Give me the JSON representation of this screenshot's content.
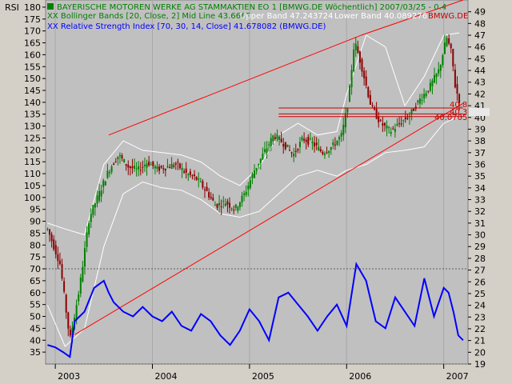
{
  "panel_label": "RSI",
  "legend": {
    "price": "BAYERISCHE MOTOREN WERKE AG STAMMAKTIEN EO 1 [BMWG.DE  Wöchentlich] 2007/03/25 - 0.4",
    "bollinger_main": "XX Bollinger Bands [20, Close, 2] Mid Line 43.6665",
    "bollinger_upper": "Upper Band 47.243724",
    "bollinger_lower": "Lower Band 40.089276",
    "bollinger_overlay": "BMWG.DE",
    "rsi": "XX Relative Strength Index [70, 30, 14, Close] 41.678082 (BMWG.DE)"
  },
  "price_markers": [
    "40.8",
    "40.3",
    "40.0705"
  ],
  "colors": {
    "background": "#c0c0c0",
    "price_up": "#008000",
    "price_down": "#8b0000",
    "bollinger": "#ffffff",
    "trendline": "#ff0000",
    "rsi": "#0000ff",
    "level_line": "#cc0000",
    "legend_main": "#008000",
    "legend_rsi": "#0000ff"
  },
  "chart_data": {
    "type": "line",
    "x_axis": {
      "tick_labels": [
        "2003",
        "2004",
        "2005",
        "2006",
        "2007"
      ],
      "range": [
        2002.9,
        2007.25
      ]
    },
    "left_axis": {
      "range": [
        30,
        183
      ],
      "tick_labels": [
        "35",
        "40",
        "45",
        "50",
        "55",
        "60",
        "65",
        "70",
        "75",
        "80",
        "85",
        "90",
        "95",
        "100",
        "105",
        "110",
        "115",
        "120",
        "125",
        "130",
        "135",
        "140",
        "145",
        "150",
        "155",
        "160",
        "165",
        "170",
        "175",
        "180"
      ]
    },
    "right_axis": {
      "range": [
        19,
        50
      ],
      "tick_labels": [
        "19",
        "20",
        "21",
        "22",
        "23",
        "24",
        "25",
        "26",
        "27",
        "28",
        "29",
        "30",
        "31",
        "32",
        "33",
        "34",
        "35",
        "36",
        "37",
        "38",
        "39",
        "40",
        "41",
        "42",
        "43",
        "44",
        "45",
        "46",
        "47",
        "48",
        "49"
      ]
    },
    "price_series": {
      "name": "BMWG.DE",
      "x": [
        2002.92,
        2003.05,
        2003.15,
        2003.25,
        2003.35,
        2003.45,
        2003.55,
        2003.65,
        2003.75,
        2003.85,
        2003.95,
        2004.05,
        2004.15,
        2004.25,
        2004.35,
        2004.45,
        2004.55,
        2004.65,
        2004.75,
        2004.85,
        2004.95,
        2005.05,
        2005.15,
        2005.25,
        2005.35,
        2005.45,
        2005.55,
        2005.65,
        2005.75,
        2005.85,
        2005.95,
        2006.02,
        2006.08,
        2006.15,
        2006.25,
        2006.35,
        2006.45,
        2006.55,
        2006.65,
        2006.75,
        2006.85,
        2006.95,
        2007.03,
        2007.08,
        2007.12,
        2007.16
      ],
      "close": [
        30.5,
        27.5,
        21.0,
        25.5,
        31.5,
        33.5,
        35.5,
        36.8,
        35.8,
        35.5,
        36.2,
        35.6,
        35.8,
        36.0,
        35.2,
        34.8,
        33.8,
        32.5,
        32.8,
        32.2,
        33.5,
        35.5,
        37.0,
        38.5,
        37.8,
        36.8,
        38.2,
        37.8,
        37.0,
        37.5,
        38.5,
        41.5,
        46.5,
        44.5,
        41.0,
        39.5,
        38.8,
        39.5,
        40.2,
        41.5,
        42.5,
        44.0,
        46.8,
        45.5,
        42.5,
        41.5
      ]
    },
    "bollinger": {
      "x": [
        2002.92,
        2003.1,
        2003.3,
        2003.5,
        2003.7,
        2003.9,
        2004.1,
        2004.3,
        2004.5,
        2004.7,
        2004.9,
        2005.1,
        2005.3,
        2005.5,
        2005.7,
        2005.9,
        2006.0,
        2006.2,
        2006.4,
        2006.6,
        2006.8,
        2007.0,
        2007.16
      ],
      "upper": [
        31.0,
        30.5,
        30.0,
        36.0,
        38.0,
        37.2,
        37.0,
        36.8,
        36.2,
        35.0,
        34.2,
        35.8,
        38.5,
        39.5,
        38.5,
        38.8,
        42.0,
        47.0,
        46.0,
        41.0,
        43.5,
        47.0,
        47.2
      ],
      "lower": [
        24.0,
        20.5,
        22.0,
        29.0,
        33.5,
        34.5,
        34.0,
        33.8,
        33.0,
        31.8,
        31.5,
        32.0,
        33.5,
        35.0,
        35.5,
        35.0,
        35.5,
        36.0,
        37.0,
        37.2,
        37.5,
        39.5,
        40.1
      ]
    },
    "trendlines": [
      {
        "x": [
          2003.55,
          2006.15
        ],
        "y": [
          38.5,
          47.0
        ]
      },
      {
        "x": [
          2003.2,
          2007.2
        ],
        "y": [
          21.5,
          41.2
        ]
      },
      {
        "x": [
          2006.15,
          2007.2
        ],
        "y": [
          47.0,
          50.0
        ]
      }
    ],
    "levels": [
      {
        "value": 40.8,
        "x": [
          2005.3,
          2007.2
        ]
      },
      {
        "value": 40.3,
        "x": [
          2005.3,
          2007.2
        ]
      },
      {
        "value": 40.0705,
        "x": [
          2005.3,
          2007.2
        ]
      }
    ],
    "rsi_series": {
      "name": "Relative Strength Index",
      "x": [
        2002.92,
        2003.0,
        2003.08,
        2003.15,
        2003.2,
        2003.3,
        2003.4,
        2003.5,
        2003.55,
        2003.6,
        2003.7,
        2003.8,
        2003.9,
        2004.0,
        2004.1,
        2004.2,
        2004.3,
        2004.4,
        2004.5,
        2004.6,
        2004.7,
        2004.8,
        2004.9,
        2005.0,
        2005.1,
        2005.2,
        2005.3,
        2005.4,
        2005.5,
        2005.6,
        2005.7,
        2005.8,
        2005.9,
        2006.0,
        2006.1,
        2006.2,
        2006.3,
        2006.4,
        2006.5,
        2006.6,
        2006.7,
        2006.8,
        2006.9,
        2007.0,
        2007.05,
        2007.1,
        2007.15,
        2007.2
      ],
      "y": [
        38,
        37,
        35,
        33,
        48,
        52,
        62,
        65,
        60,
        56,
        52,
        50,
        54,
        50,
        48,
        52,
        46,
        44,
        51,
        48,
        42,
        38,
        44,
        53,
        48,
        40,
        58,
        60,
        55,
        50,
        44,
        50,
        55,
        46,
        72,
        65,
        48,
        45,
        58,
        52,
        46,
        66,
        50,
        62,
        60,
        52,
        42,
        40
      ]
    },
    "rsi_levels": [
      70,
      30
    ]
  }
}
